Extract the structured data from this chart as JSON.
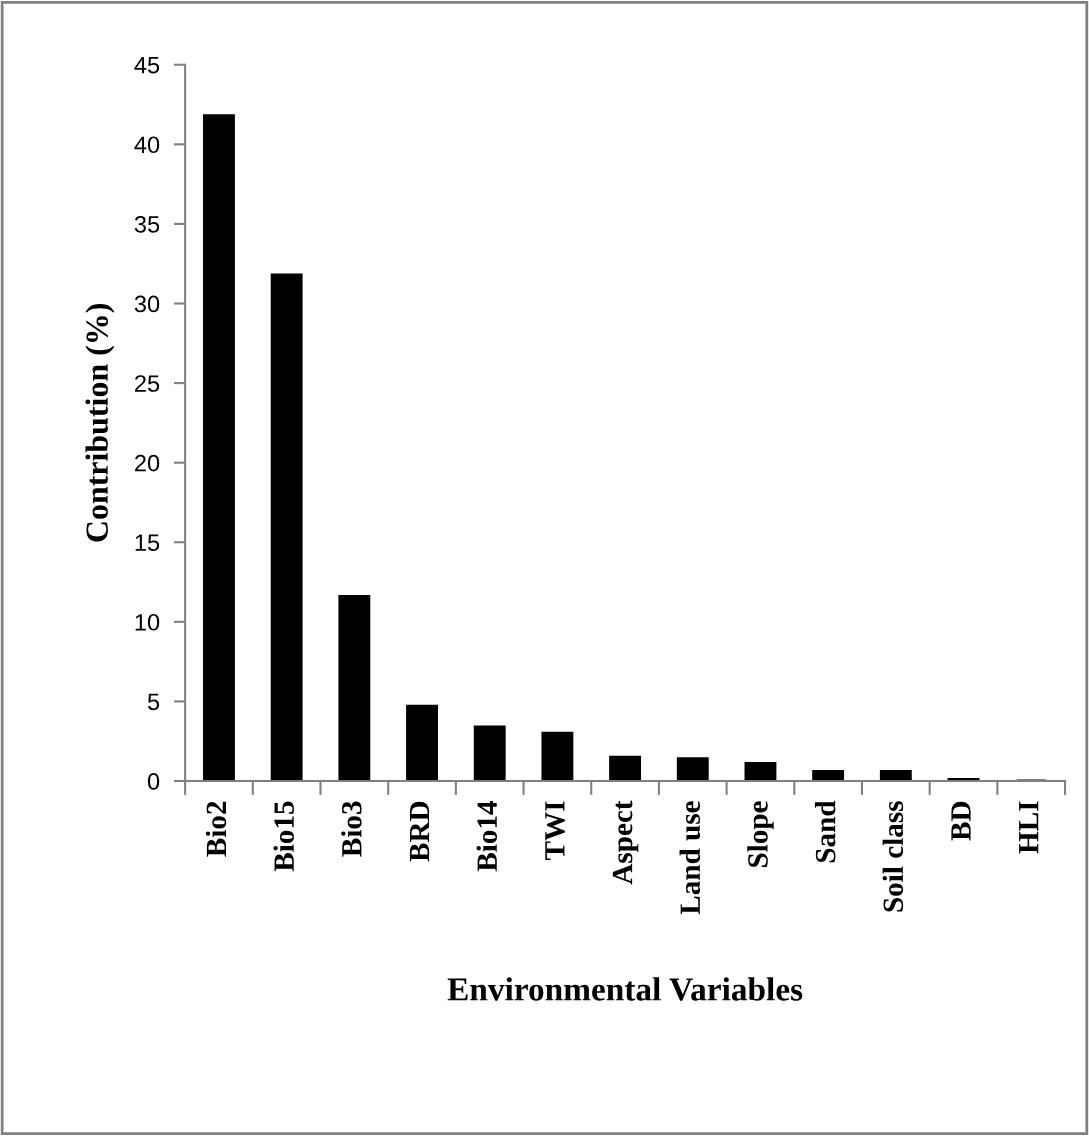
{
  "chart_data": {
    "type": "bar",
    "xlabel": "Environmental Variables",
    "ylabel": "Contribution (%)",
    "categories": [
      "Bio2",
      "Bio15",
      "Bio3",
      "BRD",
      "Bio14",
      "TWI",
      "Aspect",
      "Land use",
      "Slope",
      "Sand",
      "Soil class",
      "BD",
      "HLI"
    ],
    "values": [
      41.8,
      31.8,
      11.6,
      4.7,
      3.4,
      3.0,
      1.5,
      1.4,
      1.1,
      0.6,
      0.6,
      0.1,
      0
    ],
    "color": "#000000",
    "ylim": [
      0,
      45
    ],
    "yticks": [
      0,
      5,
      10,
      15,
      20,
      25,
      30,
      35,
      40,
      45
    ],
    "grid": false,
    "legend": false
  }
}
